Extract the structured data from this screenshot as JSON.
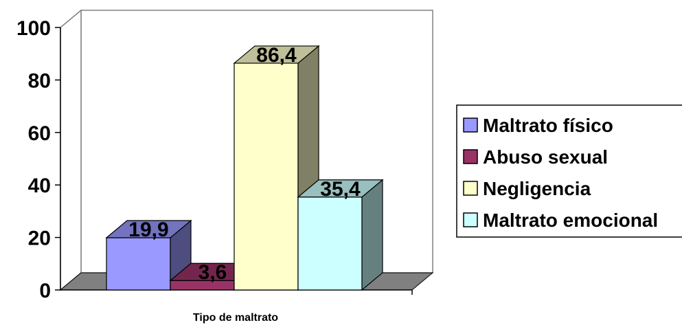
{
  "chart_data": {
    "type": "bar",
    "categories": [
      "Tipo de maltrato"
    ],
    "xlabel": "Tipo de maltrato",
    "ylabel": "",
    "ylim": [
      0,
      100
    ],
    "yticks": [
      "0",
      "20",
      "40",
      "60",
      "80",
      "100"
    ],
    "legend_position": "right",
    "three_d": true,
    "series": [
      {
        "name": "Maltrato físico",
        "value": 19.9,
        "label": "19,9",
        "color": "#9999ff"
      },
      {
        "name": "Abuso sexual",
        "value": 3.6,
        "label": "3,6",
        "color": "#993366"
      },
      {
        "name": "Negligencia",
        "value": 86.4,
        "label": "86,4",
        "color": "#ffffcc"
      },
      {
        "name": "Maltrato emocional",
        "value": 35.4,
        "label": "35,4",
        "color": "#ccffff"
      }
    ],
    "colors": {
      "wall_fill": "#ffffff",
      "floor_fill": "#808080",
      "wall_stroke": "#808080",
      "bar_stroke": "#000000"
    }
  }
}
